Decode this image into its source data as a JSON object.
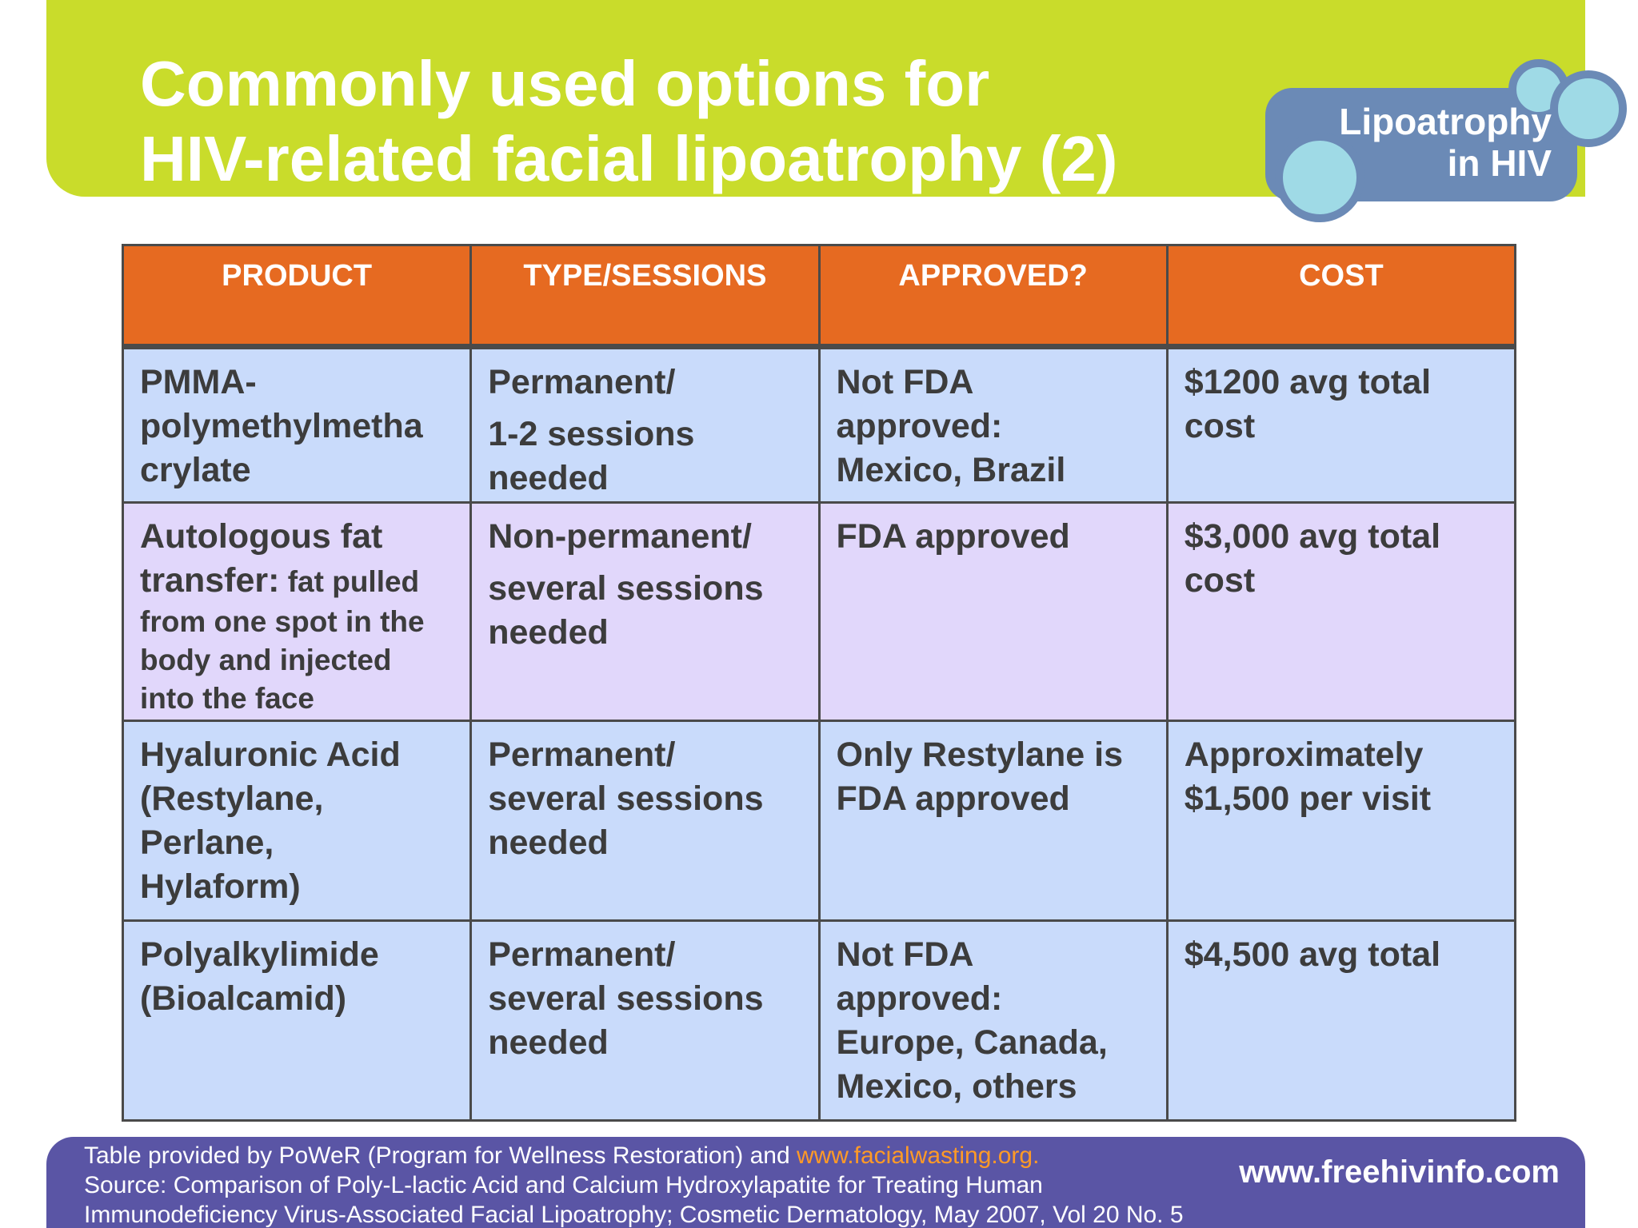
{
  "header": {
    "title_line1": "Commonly used options for",
    "title_line2": "HIV-related facial lipoatrophy (2)",
    "logo_line1": "Lipoatrophy",
    "logo_line2": "in HIV"
  },
  "table": {
    "columns": [
      "PRODUCT",
      "TYPE/SESSIONS",
      "APPROVED?",
      "COST"
    ],
    "rows": [
      {
        "product": [
          "PMMA-",
          "polymethylmetha",
          "crylate"
        ],
        "type": [
          "Permanent/",
          "1-2 sessions",
          "needed"
        ],
        "approved": [
          "Not FDA",
          "approved:",
          "Mexico, Brazil"
        ],
        "cost": [
          "$1200 avg total",
          "cost"
        ]
      },
      {
        "product_head": [
          "Autologous fat",
          "transfer:"
        ],
        "product_note": [
          " fat pulled",
          "from one spot in the",
          "body and injected",
          "into the face"
        ],
        "type": [
          "Non-permanent/",
          "several sessions",
          "needed"
        ],
        "approved": [
          "FDA approved"
        ],
        "cost": [
          "$3,000 avg total",
          "cost"
        ]
      },
      {
        "product": [
          "Hyaluronic Acid",
          "(Restylane,",
          "Perlane,",
          "Hylaform)"
        ],
        "type": [
          "Permanent/",
          "several sessions",
          "needed"
        ],
        "approved": [
          "Only Restylane is",
          "FDA approved"
        ],
        "cost": [
          "Approximately",
          "$1,500 per visit"
        ]
      },
      {
        "product": [
          "Polyalkylimide",
          "(Bioalcamid)"
        ],
        "type": [
          "Permanent/",
          "several sessions",
          "needed"
        ],
        "approved": [
          "Not FDA",
          "approved:",
          "Europe, Canada,",
          "Mexico, others"
        ],
        "cost": [
          "$4,500 avg total"
        ]
      }
    ]
  },
  "footer": {
    "credit_prefix": "Table provided by PoWeR (Program for Wellness Restoration) and ",
    "credit_link": "www.facialwasting.org.",
    "source_line1": "Source: Comparison of Poly-L-lactic Acid and Calcium Hydroxylapatite for Treating Human",
    "source_line2": "Immunodeficiency Virus-Associated Facial Lipoatrophy; Cosmetic Dermatology, May 2007, Vol 20 No. 5",
    "site_url": "www.freehivinfo.com"
  },
  "colors": {
    "banner": "#c9dc2b",
    "header_row": "#e66a21",
    "row_blue": "#c9dbfb",
    "row_lavender": "#e1d7fb",
    "footer": "#5a55a5",
    "link": "#ff9a26",
    "logo_pill": "#6b8ab6",
    "logo_circle": "#9fdae6"
  }
}
